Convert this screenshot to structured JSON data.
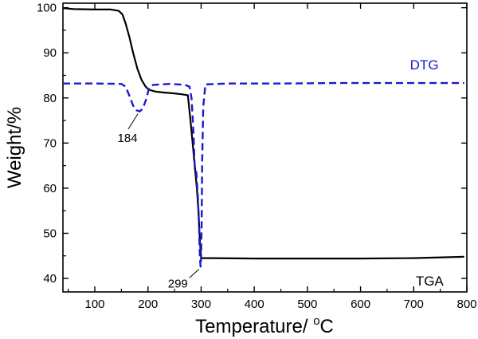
{
  "chart_data": {
    "type": "line",
    "xlabel": "Temperature/ ",
    "xlabel_unit_sup": "o",
    "xlabel_unit": "C",
    "ylabel": "Weight/%",
    "xlim": [
      40,
      800
    ],
    "ylim": [
      37,
      101
    ],
    "xticks": [
      100,
      200,
      300,
      400,
      500,
      600,
      700,
      800
    ],
    "yticks": [
      40,
      50,
      60,
      70,
      80,
      90,
      100
    ],
    "grid": false,
    "series": [
      {
        "name": "TGA",
        "color": "#000000",
        "dash": "solid",
        "x": [
          40,
          60,
          100,
          130,
          145,
          152,
          158,
          165,
          172,
          180,
          188,
          195,
          200,
          205,
          215,
          230,
          250,
          265,
          275,
          280,
          284,
          288,
          292,
          295,
          297,
          299,
          300,
          302,
          320,
          400,
          500,
          600,
          700,
          795
        ],
        "y": [
          99.9,
          99.7,
          99.6,
          99.6,
          99.3,
          98.5,
          96.5,
          93.5,
          90.0,
          86.5,
          84.0,
          82.6,
          82.0,
          81.7,
          81.4,
          81.2,
          81.0,
          80.8,
          80.6,
          75.0,
          70.0,
          65.0,
          60.0,
          55.0,
          50.0,
          46.0,
          44.6,
          44.5,
          44.5,
          44.4,
          44.4,
          44.4,
          44.5,
          44.8
        ]
      },
      {
        "name": "DTG",
        "color": "#1a1acc",
        "dash": "dashed",
        "x": [
          40,
          100,
          150,
          158,
          165,
          172,
          178,
          184,
          190,
          196,
          202,
          210,
          240,
          270,
          278,
          282,
          285,
          288,
          291,
          294,
          296,
          297,
          298,
          299,
          300,
          301,
          302,
          304,
          308,
          350,
          450,
          550,
          650,
          795
        ],
        "y": [
          83.2,
          83.2,
          83.1,
          82.5,
          80.5,
          78.3,
          77.3,
          77.0,
          77.6,
          79.5,
          82.2,
          82.9,
          83.1,
          82.9,
          82.5,
          80.0,
          74.0,
          65.0,
          63.5,
          58.0,
          52.0,
          47.5,
          44.0,
          42.6,
          44.5,
          52.0,
          66.0,
          78.0,
          83.0,
          83.2,
          83.2,
          83.3,
          83.3,
          83.3
        ]
      }
    ],
    "annotations": [
      {
        "text": "184",
        "x": 184,
        "y": 77.0
      },
      {
        "text": "299",
        "x": 299,
        "y": 42.6
      }
    ],
    "series_labels": [
      {
        "text": "DTG",
        "x": 720,
        "y": 86.3,
        "color": "#1a1acc"
      },
      {
        "text": "TGA",
        "x": 730,
        "y": 38.4,
        "color": "#000000"
      }
    ]
  }
}
